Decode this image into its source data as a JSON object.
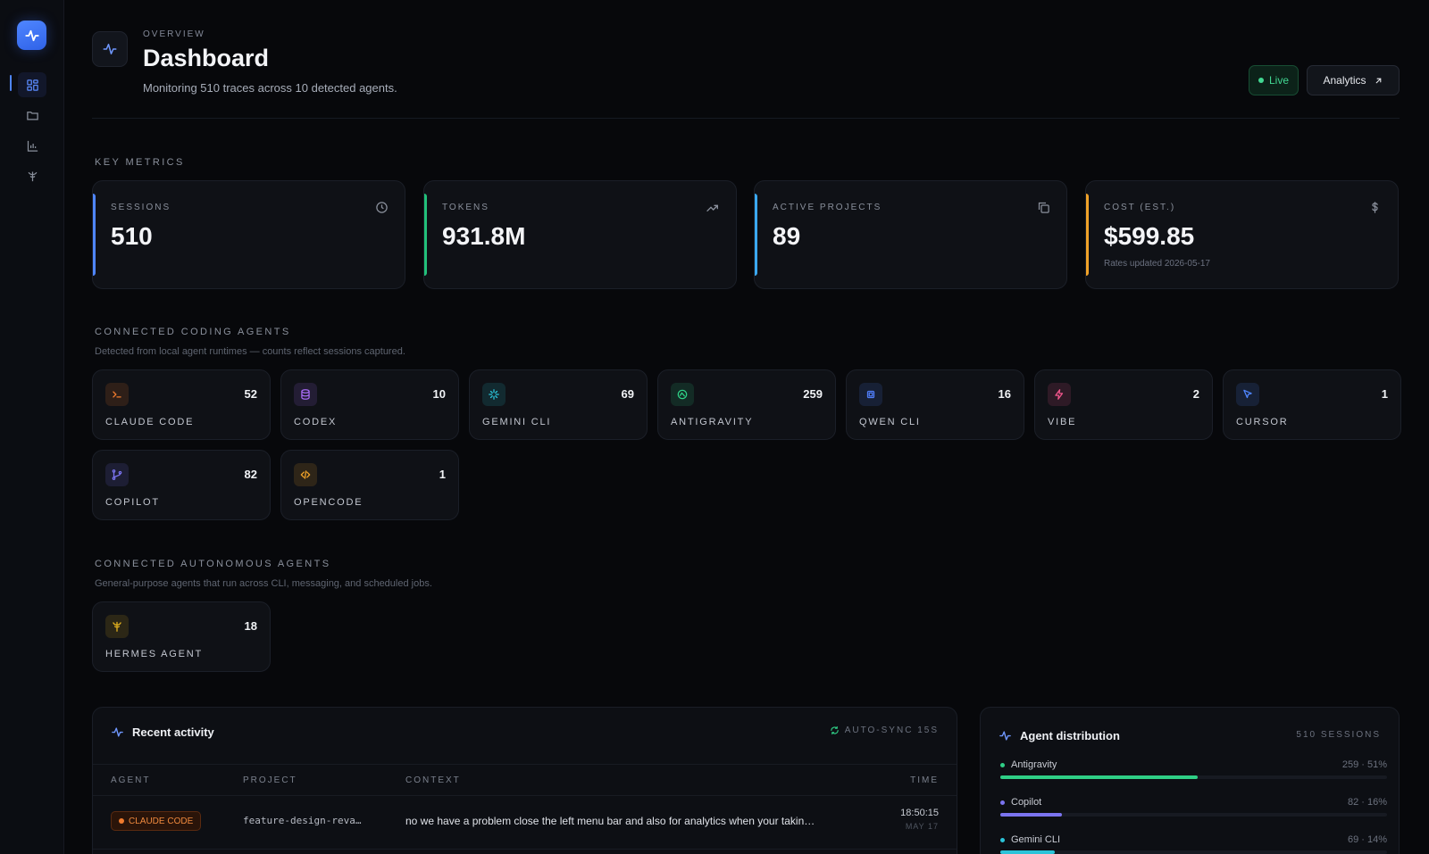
{
  "header": {
    "kicker": "OVERVIEW",
    "title": "Dashboard",
    "subtitle": "Monitoring 510 traces across 10 detected agents.",
    "live_label": "Live",
    "analytics_label": "Analytics"
  },
  "sections": {
    "key_metrics": "KEY METRICS",
    "coding_agents": "CONNECTED CODING AGENTS",
    "coding_agents_sub": "Detected from local agent runtimes — counts reflect sessions captured.",
    "autonomous_agents": "CONNECTED AUTONOMOUS AGENTS",
    "autonomous_agents_sub": "General-purpose agents that run across CLI, messaging, and scheduled jobs."
  },
  "metrics": [
    {
      "label": "SESSIONS",
      "value": "510",
      "note": "",
      "icon": "clock-icon",
      "accent": "#4f86ff"
    },
    {
      "label": "TOKENS",
      "value": "931.8M",
      "note": "",
      "icon": "trending-up-icon",
      "accent": "#22c07a"
    },
    {
      "label": "ACTIVE PROJECTS",
      "value": "89",
      "note": "",
      "icon": "copy-icon",
      "accent": "#3aa8f0"
    },
    {
      "label": "COST (EST.)",
      "value": "$599.85",
      "note": "Rates updated 2026-05-17",
      "icon": "dollar-icon",
      "accent": "#f0a228"
    }
  ],
  "coding_agents": [
    {
      "name": "CLAUDE CODE",
      "count": "52",
      "icon": "terminal-icon",
      "color": "#f07b2e"
    },
    {
      "name": "CODEX",
      "count": "10",
      "icon": "database-icon",
      "color": "#a66bf2"
    },
    {
      "name": "GEMINI CLI",
      "count": "69",
      "icon": "sparkle-icon",
      "color": "#2bc3d8"
    },
    {
      "name": "ANTIGRAVITY",
      "count": "259",
      "icon": "orbit-icon",
      "color": "#2fcf86"
    },
    {
      "name": "QWEN CLI",
      "count": "16",
      "icon": "chip-icon",
      "color": "#4f7cf5"
    },
    {
      "name": "VIBE",
      "count": "2",
      "icon": "bolt-icon",
      "color": "#f0558b"
    },
    {
      "name": "CURSOR",
      "count": "1",
      "icon": "cursor-icon",
      "color": "#4f86ff"
    },
    {
      "name": "COPILOT",
      "count": "82",
      "icon": "branch-icon",
      "color": "#7b74f0"
    },
    {
      "name": "OPENCODE",
      "count": "1",
      "icon": "code-icon",
      "color": "#f0a228"
    }
  ],
  "autonomous_agents": [
    {
      "name": "HERMES AGENT",
      "count": "18",
      "icon": "caduceus-icon",
      "color": "#e4b21f"
    }
  ],
  "recent_activity": {
    "title": "Recent activity",
    "sync_label": "AUTO-SYNC 15S",
    "columns": [
      "AGENT",
      "PROJECT",
      "CONTEXT",
      "TIME"
    ],
    "rows": [
      {
        "agent": "CLAUDE CODE",
        "project": "feature-design-reva…",
        "context": "no we have a problem close the left menu bar and also for analytics when your takin…",
        "time": "18:50:15",
        "date": "MAY 17"
      }
    ]
  },
  "distribution": {
    "title": "Agent distribution",
    "total_label": "510 SESSIONS",
    "items": [
      {
        "name": "Antigravity",
        "value": "259 · 51%",
        "fraction": 0.51,
        "color": "#2fcf86"
      },
      {
        "name": "Copilot",
        "value": "82 · 16%",
        "fraction": 0.16,
        "color": "#7b74f0"
      },
      {
        "name": "Gemini CLI",
        "value": "69 · 14%",
        "fraction": 0.14,
        "color": "#2bc3d8"
      }
    ]
  }
}
